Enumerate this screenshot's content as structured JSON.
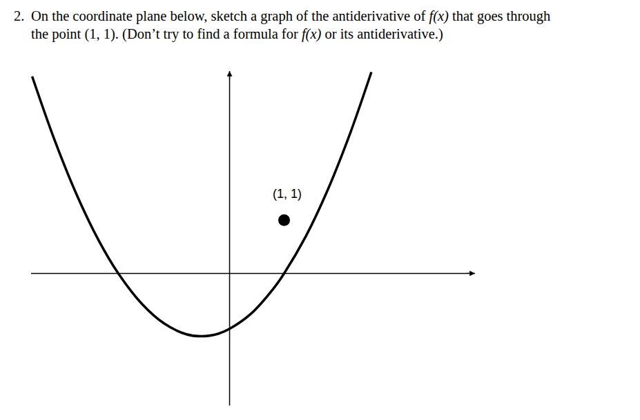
{
  "problem": {
    "number": "2.",
    "lines": [
      [
        {
          "text": "On the coordinate plane below, sketch a graph of the antiderivative of "
        },
        {
          "math": "f(x)"
        },
        {
          "text": " that goes through"
        }
      ],
      [
        {
          "text": "the point (1, 1). (Don’t try to find a formula for "
        },
        {
          "math": "f(x)"
        },
        {
          "text": " or its antiderivative.)"
        }
      ]
    ]
  },
  "chart_data": {
    "type": "line",
    "x": [
      -3.62,
      -3.2,
      -2.8,
      -2.4,
      -2.04,
      -1.6,
      -1.2,
      -0.8,
      -0.52,
      -0.2,
      0,
      0.4,
      0.8,
      1.0,
      1.4,
      1.8,
      2.2,
      2.6
    ],
    "values": [
      3.7,
      2.48,
      1.47,
      0.62,
      0,
      -0.58,
      -0.94,
      -1.14,
      -1.18,
      -1.13,
      -1.04,
      -0.75,
      -0.29,
      0,
      0.7,
      1.57,
      2.6,
      3.78
    ],
    "color": "#000000",
    "xlim": [
      -3.64,
      4.5
    ],
    "ylim": [
      -2.48,
      3.8
    ],
    "tick_labels": false,
    "grid": false,
    "point": {
      "x": 1,
      "y": 1,
      "label": "(1, 1)",
      "color": "#000000"
    }
  }
}
